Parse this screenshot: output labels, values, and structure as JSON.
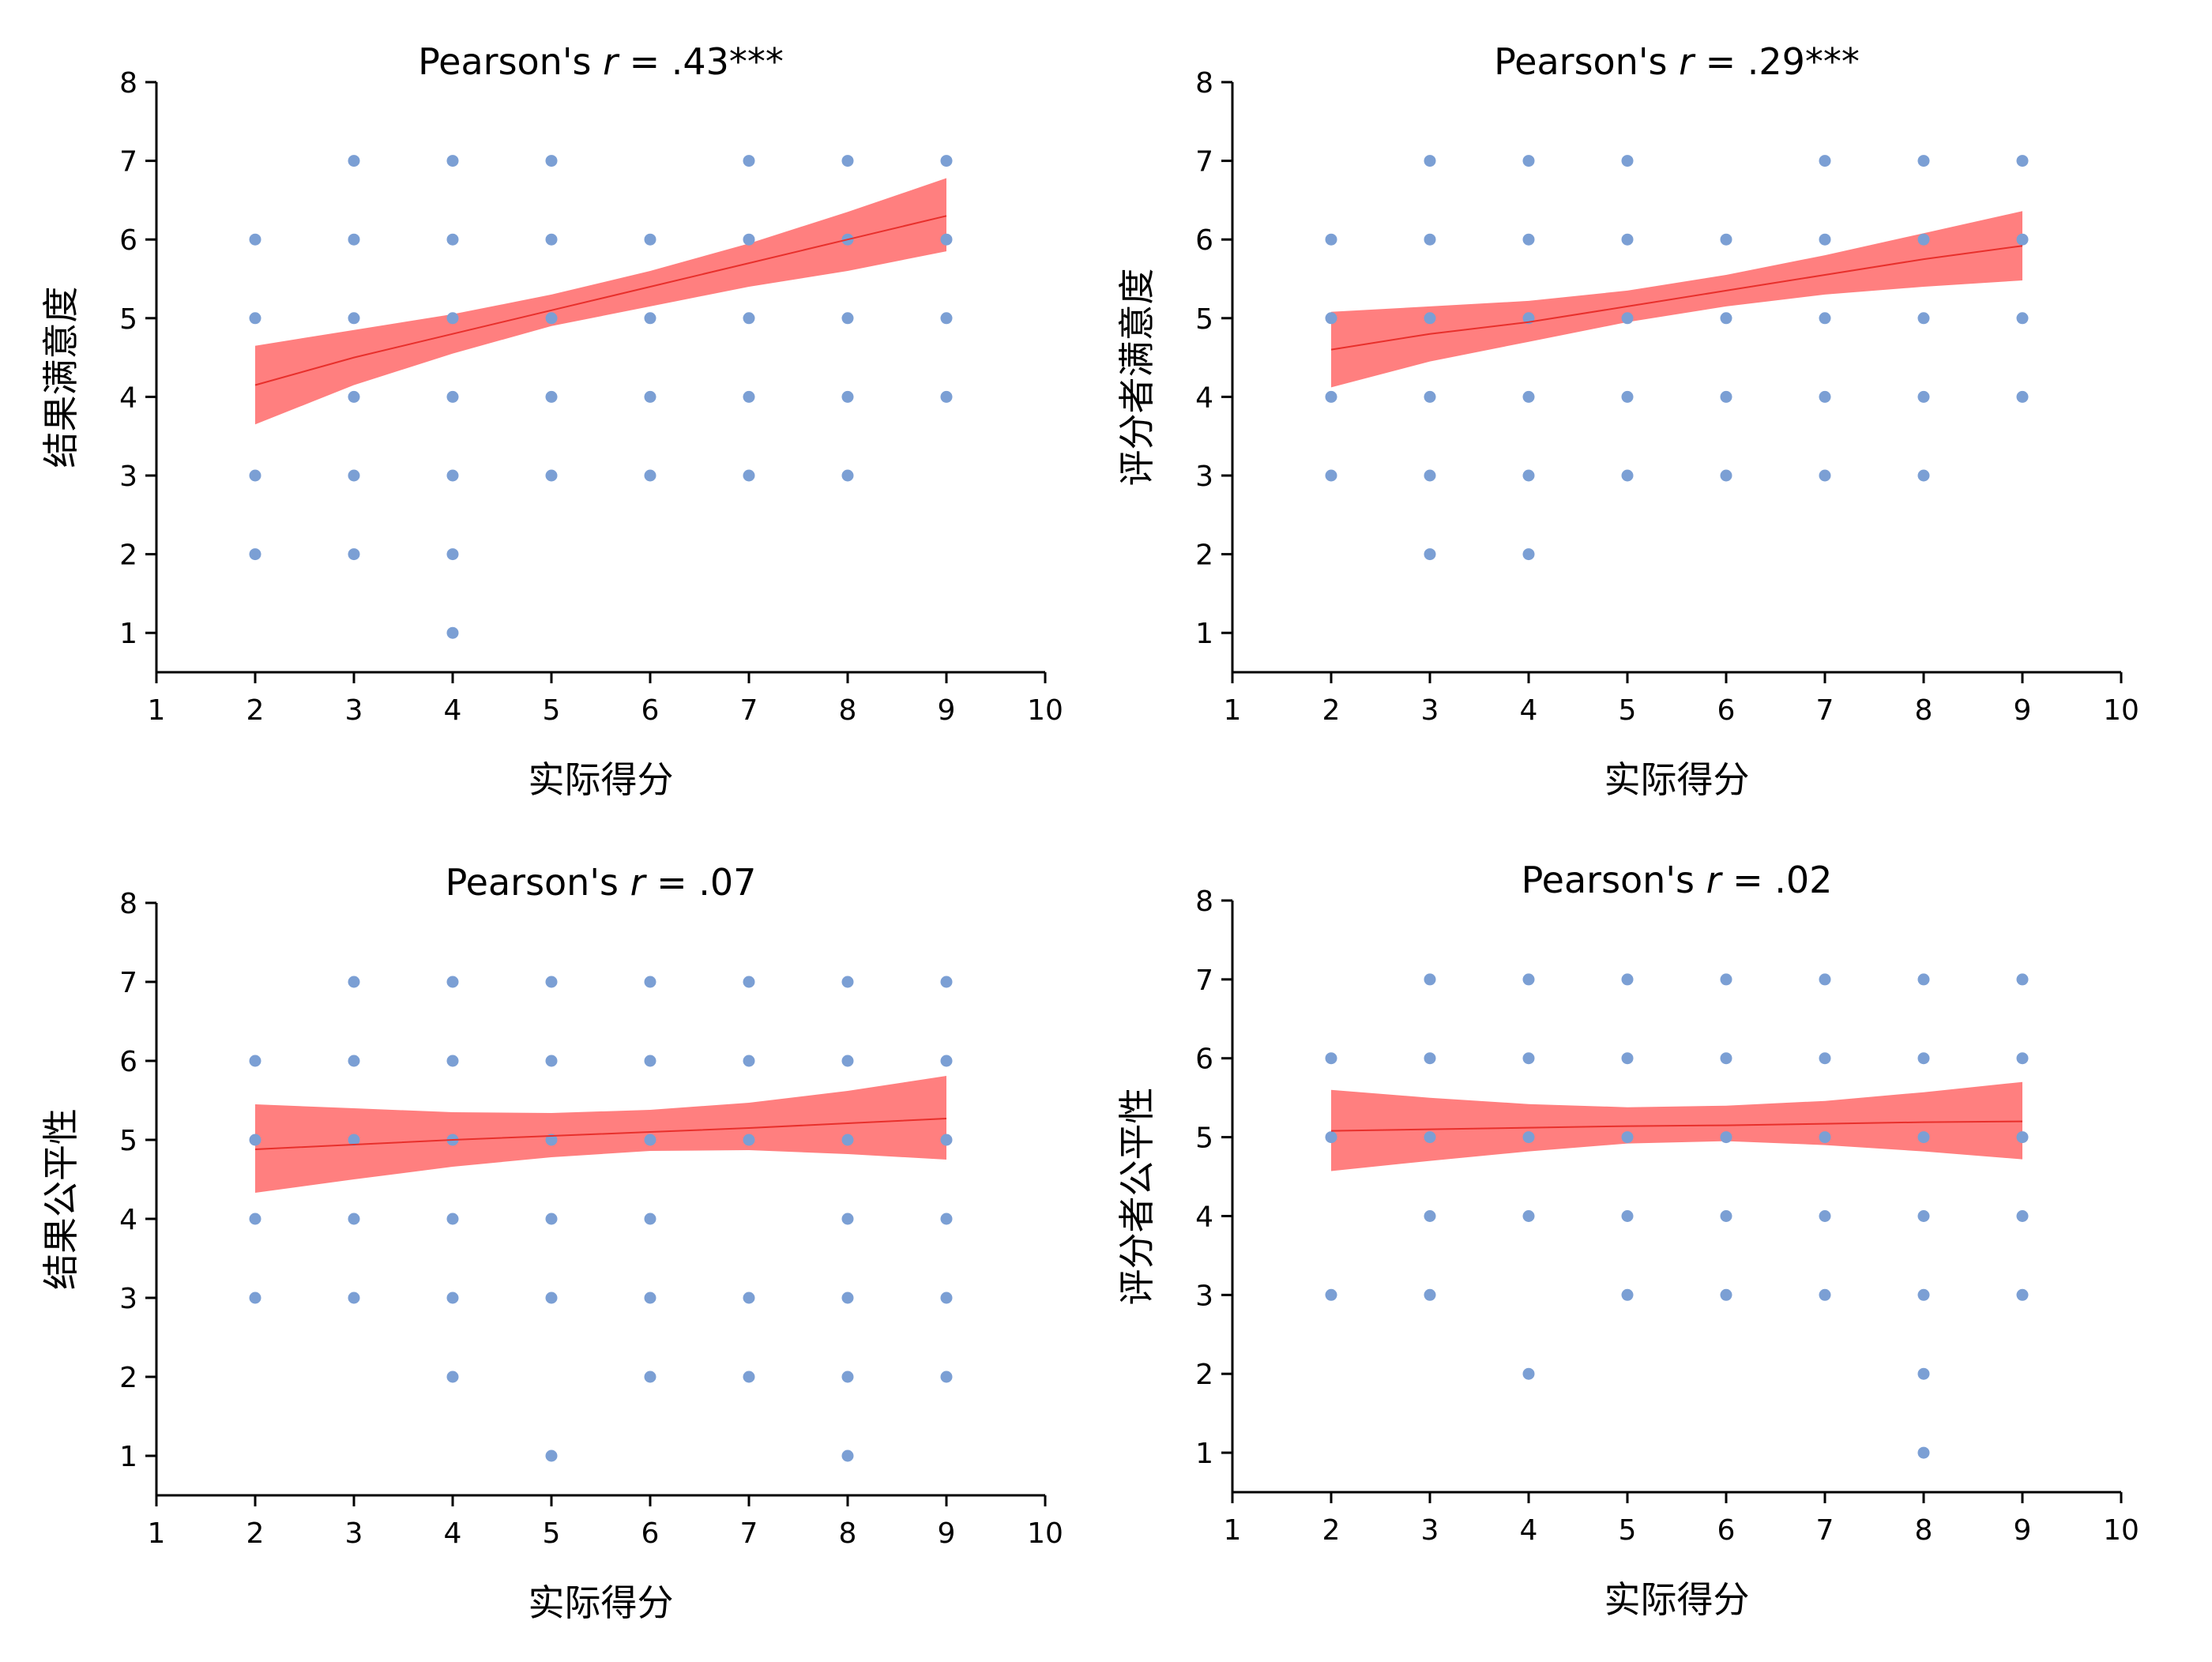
{
  "colors": {
    "point": "#7b9fd4",
    "fit_line": "#e8302c",
    "confidence_band": "#ff7f7f",
    "axis": "#000000"
  },
  "chart_data": [
    {
      "type": "scatter",
      "title": "Pearson's r = .43***",
      "title_parts": {
        "prefix": "Pearson's ",
        "r": "r",
        "suffix": " = .43***"
      },
      "xlabel": "实际得分",
      "ylabel": "结果满意度",
      "xlim": [
        1,
        10
      ],
      "ylim": [
        0.5,
        8
      ],
      "xticks": [
        1,
        2,
        3,
        4,
        5,
        6,
        7,
        8,
        9,
        10
      ],
      "yticks": [
        1,
        2,
        3,
        4,
        5,
        6,
        7,
        8
      ],
      "grid": false,
      "points": [
        [
          2,
          6
        ],
        [
          2,
          5
        ],
        [
          2,
          3
        ],
        [
          2,
          2
        ],
        [
          3,
          7
        ],
        [
          3,
          6
        ],
        [
          3,
          5
        ],
        [
          3,
          4
        ],
        [
          3,
          3
        ],
        [
          3,
          2
        ],
        [
          4,
          7
        ],
        [
          4,
          6
        ],
        [
          4,
          5
        ],
        [
          4,
          4
        ],
        [
          4,
          3
        ],
        [
          4,
          2
        ],
        [
          4,
          1
        ],
        [
          5,
          7
        ],
        [
          5,
          6
        ],
        [
          5,
          5
        ],
        [
          5,
          4
        ],
        [
          5,
          3
        ],
        [
          6,
          6
        ],
        [
          6,
          5
        ],
        [
          6,
          4
        ],
        [
          6,
          3
        ],
        [
          7,
          7
        ],
        [
          7,
          6
        ],
        [
          7,
          5
        ],
        [
          7,
          4
        ],
        [
          7,
          3
        ],
        [
          8,
          7
        ],
        [
          8,
          6
        ],
        [
          8,
          5
        ],
        [
          8,
          4
        ],
        [
          8,
          3
        ],
        [
          9,
          7
        ],
        [
          9,
          6
        ],
        [
          9,
          5
        ],
        [
          9,
          4
        ]
      ],
      "fit": {
        "x": [
          2,
          3,
          4,
          5,
          6,
          7,
          8,
          9
        ],
        "y": [
          4.15,
          4.5,
          4.8,
          5.1,
          5.4,
          5.7,
          6.0,
          6.3
        ],
        "lower": [
          3.65,
          4.15,
          4.55,
          4.9,
          5.15,
          5.4,
          5.6,
          5.85
        ],
        "upper": [
          4.65,
          4.85,
          5.05,
          5.3,
          5.6,
          5.95,
          6.35,
          6.78
        ]
      }
    },
    {
      "type": "scatter",
      "title": "Pearson's r = .29***",
      "title_parts": {
        "prefix": "Pearson's ",
        "r": "r",
        "suffix": " = .29***"
      },
      "xlabel": "实际得分",
      "ylabel": "评分者满意度",
      "xlim": [
        1,
        10
      ],
      "ylim": [
        0.5,
        8
      ],
      "xticks": [
        1,
        2,
        3,
        4,
        5,
        6,
        7,
        8,
        9,
        10
      ],
      "yticks": [
        1,
        2,
        3,
        4,
        5,
        6,
        7,
        8
      ],
      "grid": false,
      "points": [
        [
          2,
          6
        ],
        [
          2,
          5
        ],
        [
          2,
          4
        ],
        [
          2,
          3
        ],
        [
          3,
          7
        ],
        [
          3,
          6
        ],
        [
          3,
          5
        ],
        [
          3,
          4
        ],
        [
          3,
          3
        ],
        [
          3,
          2
        ],
        [
          4,
          7
        ],
        [
          4,
          6
        ],
        [
          4,
          5
        ],
        [
          4,
          4
        ],
        [
          4,
          3
        ],
        [
          4,
          2
        ],
        [
          5,
          7
        ],
        [
          5,
          6
        ],
        [
          5,
          5
        ],
        [
          5,
          4
        ],
        [
          5,
          3
        ],
        [
          6,
          6
        ],
        [
          6,
          5
        ],
        [
          6,
          4
        ],
        [
          6,
          3
        ],
        [
          7,
          7
        ],
        [
          7,
          6
        ],
        [
          7,
          5
        ],
        [
          7,
          4
        ],
        [
          7,
          3
        ],
        [
          8,
          7
        ],
        [
          8,
          6
        ],
        [
          8,
          5
        ],
        [
          8,
          4
        ],
        [
          8,
          3
        ],
        [
          9,
          7
        ],
        [
          9,
          6
        ],
        [
          9,
          5
        ],
        [
          9,
          4
        ]
      ],
      "fit": {
        "x": [
          2,
          3,
          4,
          5,
          6,
          7,
          8,
          9
        ],
        "y": [
          4.6,
          4.8,
          4.95,
          5.15,
          5.35,
          5.55,
          5.75,
          5.92
        ],
        "lower": [
          4.12,
          4.45,
          4.7,
          4.95,
          5.15,
          5.3,
          5.4,
          5.48
        ],
        "upper": [
          5.08,
          5.15,
          5.22,
          5.35,
          5.55,
          5.8,
          6.08,
          6.36
        ]
      }
    },
    {
      "type": "scatter",
      "title": "Pearson's r = .07",
      "title_parts": {
        "prefix": "Pearson's ",
        "r": "r",
        "suffix": " = .07"
      },
      "xlabel": "实际得分",
      "ylabel": "结果公平性",
      "xlim": [
        1,
        10
      ],
      "ylim": [
        0.5,
        8
      ],
      "xticks": [
        1,
        2,
        3,
        4,
        5,
        6,
        7,
        8,
        9,
        10
      ],
      "yticks": [
        1,
        2,
        3,
        4,
        5,
        6,
        7,
        8
      ],
      "grid": false,
      "points": [
        [
          2,
          6
        ],
        [
          2,
          5
        ],
        [
          2,
          4
        ],
        [
          2,
          3
        ],
        [
          3,
          7
        ],
        [
          3,
          6
        ],
        [
          3,
          5
        ],
        [
          3,
          4
        ],
        [
          3,
          3
        ],
        [
          4,
          7
        ],
        [
          4,
          6
        ],
        [
          4,
          5
        ],
        [
          4,
          4
        ],
        [
          4,
          3
        ],
        [
          4,
          2
        ],
        [
          5,
          7
        ],
        [
          5,
          6
        ],
        [
          5,
          5
        ],
        [
          5,
          4
        ],
        [
          5,
          3
        ],
        [
          5,
          1
        ],
        [
          6,
          7
        ],
        [
          6,
          6
        ],
        [
          6,
          5
        ],
        [
          6,
          4
        ],
        [
          6,
          3
        ],
        [
          6,
          2
        ],
        [
          7,
          7
        ],
        [
          7,
          6
        ],
        [
          7,
          5
        ],
        [
          7,
          3
        ],
        [
          7,
          2
        ],
        [
          8,
          7
        ],
        [
          8,
          6
        ],
        [
          8,
          5
        ],
        [
          8,
          4
        ],
        [
          8,
          3
        ],
        [
          8,
          2
        ],
        [
          8,
          1
        ],
        [
          9,
          7
        ],
        [
          9,
          6
        ],
        [
          9,
          5
        ],
        [
          9,
          4
        ],
        [
          9,
          3
        ],
        [
          9,
          2
        ]
      ],
      "fit": {
        "x": [
          2,
          3,
          4,
          5,
          6,
          7,
          8,
          9
        ],
        "y": [
          4.88,
          4.94,
          5.0,
          5.05,
          5.1,
          5.15,
          5.21,
          5.27
        ],
        "lower": [
          4.33,
          4.5,
          4.66,
          4.78,
          4.86,
          4.87,
          4.82,
          4.75
        ],
        "upper": [
          5.45,
          5.4,
          5.35,
          5.34,
          5.38,
          5.47,
          5.62,
          5.81
        ]
      }
    },
    {
      "type": "scatter",
      "title": "Pearson's r = .02",
      "title_parts": {
        "prefix": "Pearson's ",
        "r": "r",
        "suffix": " = .02"
      },
      "xlabel": "实际得分",
      "ylabel": "评分者公平性",
      "xlim": [
        1,
        10
      ],
      "ylim": [
        0.5,
        8
      ],
      "xticks": [
        1,
        2,
        3,
        4,
        5,
        6,
        7,
        8,
        9,
        10
      ],
      "yticks": [
        1,
        2,
        3,
        4,
        5,
        6,
        7,
        8
      ],
      "grid": false,
      "points": [
        [
          2,
          6
        ],
        [
          2,
          5
        ],
        [
          2,
          3
        ],
        [
          3,
          7
        ],
        [
          3,
          6
        ],
        [
          3,
          5
        ],
        [
          3,
          4
        ],
        [
          3,
          3
        ],
        [
          4,
          7
        ],
        [
          4,
          6
        ],
        [
          4,
          5
        ],
        [
          4,
          4
        ],
        [
          4,
          2
        ],
        [
          5,
          7
        ],
        [
          5,
          6
        ],
        [
          5,
          5
        ],
        [
          5,
          4
        ],
        [
          5,
          3
        ],
        [
          6,
          7
        ],
        [
          6,
          6
        ],
        [
          6,
          5
        ],
        [
          6,
          4
        ],
        [
          6,
          3
        ],
        [
          7,
          7
        ],
        [
          7,
          6
        ],
        [
          7,
          5
        ],
        [
          7,
          4
        ],
        [
          7,
          3
        ],
        [
          8,
          7
        ],
        [
          8,
          6
        ],
        [
          8,
          5
        ],
        [
          8,
          4
        ],
        [
          8,
          3
        ],
        [
          8,
          2
        ],
        [
          8,
          1
        ],
        [
          9,
          7
        ],
        [
          9,
          6
        ],
        [
          9,
          5
        ],
        [
          9,
          4
        ],
        [
          9,
          3
        ]
      ],
      "fit": {
        "x": [
          2,
          3,
          4,
          5,
          6,
          7,
          8,
          9
        ],
        "y": [
          5.08,
          5.1,
          5.12,
          5.14,
          5.15,
          5.17,
          5.19,
          5.2
        ],
        "lower": [
          4.57,
          4.7,
          4.82,
          4.92,
          4.95,
          4.9,
          4.82,
          4.72
        ],
        "upper": [
          5.6,
          5.5,
          5.42,
          5.38,
          5.4,
          5.46,
          5.57,
          5.7
        ]
      }
    }
  ]
}
